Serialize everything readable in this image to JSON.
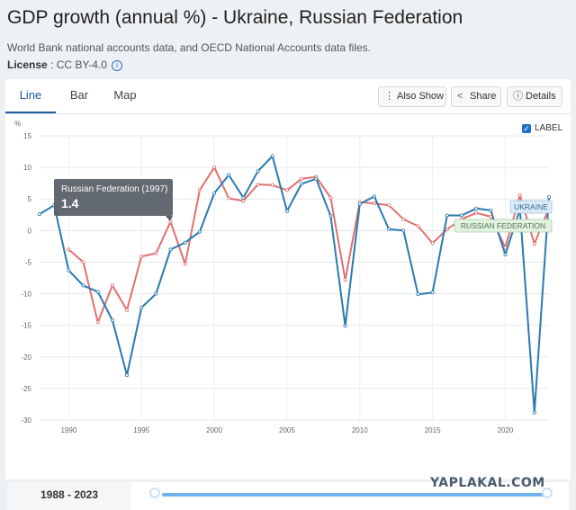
{
  "header": {
    "title": "GDP growth (annual %) - Ukraine, Russian Federation",
    "subtitle": "World Bank national accounts data, and OECD National Accounts data files.",
    "license_label": "License",
    "license_value": ": CC BY-4.0",
    "info_icon": "info-icon"
  },
  "tabs": [
    {
      "label": "Line",
      "active": true
    },
    {
      "label": "Bar",
      "active": false
    },
    {
      "label": "Map",
      "active": false
    }
  ],
  "toolbar": {
    "also_show": "Also Show",
    "share": "Share",
    "details": "Details"
  },
  "label_toggle": {
    "text": "LABEL",
    "checked": true
  },
  "tooltip": {
    "title": "Russian Federation (1997)",
    "value": "1.4"
  },
  "range": {
    "label": "1988 - 2023",
    "start": 1988,
    "end": 2023
  },
  "watermark": "YAPLAKAL.COM",
  "colors": {
    "ukraine": "#2a7ab0",
    "russia": "#e07070",
    "accent": "#1e5aa0"
  },
  "chart_data": {
    "type": "line",
    "ylabel": "%",
    "ylim": [
      -30,
      15
    ],
    "xlim": [
      1988,
      2023
    ],
    "x_ticks": [
      "1990",
      "1995",
      "2000",
      "2005",
      "2010",
      "2015",
      "2020"
    ],
    "y_ticks": [
      "15",
      "10",
      "5",
      "0",
      "-5",
      "-10",
      "-15",
      "-20",
      "-25",
      "-30"
    ],
    "grid": true,
    "series": [
      {
        "name": "UKRAINE",
        "color": "#2a7ab0",
        "x": [
          1988,
          1989,
          1990,
          1991,
          1992,
          1993,
          1994,
          1995,
          1996,
          1997,
          1998,
          1999,
          2000,
          2001,
          2002,
          2003,
          2004,
          2005,
          2006,
          2007,
          2008,
          2009,
          2010,
          2011,
          2012,
          2013,
          2014,
          2015,
          2016,
          2017,
          2018,
          2019,
          2020,
          2021,
          2022,
          2023
        ],
        "values": [
          2.6,
          4.0,
          -6.3,
          -8.7,
          -9.7,
          -14.2,
          -22.9,
          -12.2,
          -10.0,
          -3.0,
          -1.9,
          -0.2,
          5.9,
          8.8,
          5.2,
          9.4,
          11.8,
          3.1,
          7.4,
          8.2,
          2.3,
          -15.1,
          4.2,
          5.4,
          0.2,
          0.0,
          -10.1,
          -9.8,
          2.4,
          2.4,
          3.5,
          3.2,
          -3.8,
          3.4,
          -28.8,
          5.3
        ]
      },
      {
        "name": "RUSSIAN FEDERATION",
        "color": "#e07070",
        "x": [
          1990,
          1991,
          1992,
          1993,
          1994,
          1995,
          1996,
          1997,
          1998,
          1999,
          2000,
          2001,
          2002,
          2003,
          2004,
          2005,
          2006,
          2007,
          2008,
          2009,
          2010,
          2011,
          2012,
          2013,
          2014,
          2015,
          2016,
          2017,
          2018,
          2019,
          2020,
          2021,
          2022,
          2023
        ],
        "values": [
          -3.0,
          -5.0,
          -14.5,
          -8.7,
          -12.6,
          -4.1,
          -3.6,
          1.4,
          -5.3,
          6.4,
          10.0,
          5.1,
          4.7,
          7.3,
          7.2,
          6.4,
          8.2,
          8.5,
          5.2,
          -7.8,
          4.5,
          4.3,
          4.0,
          1.8,
          0.7,
          -2.0,
          0.2,
          1.8,
          2.8,
          2.2,
          -2.7,
          5.6,
          -2.1,
          3.6
        ]
      }
    ]
  }
}
